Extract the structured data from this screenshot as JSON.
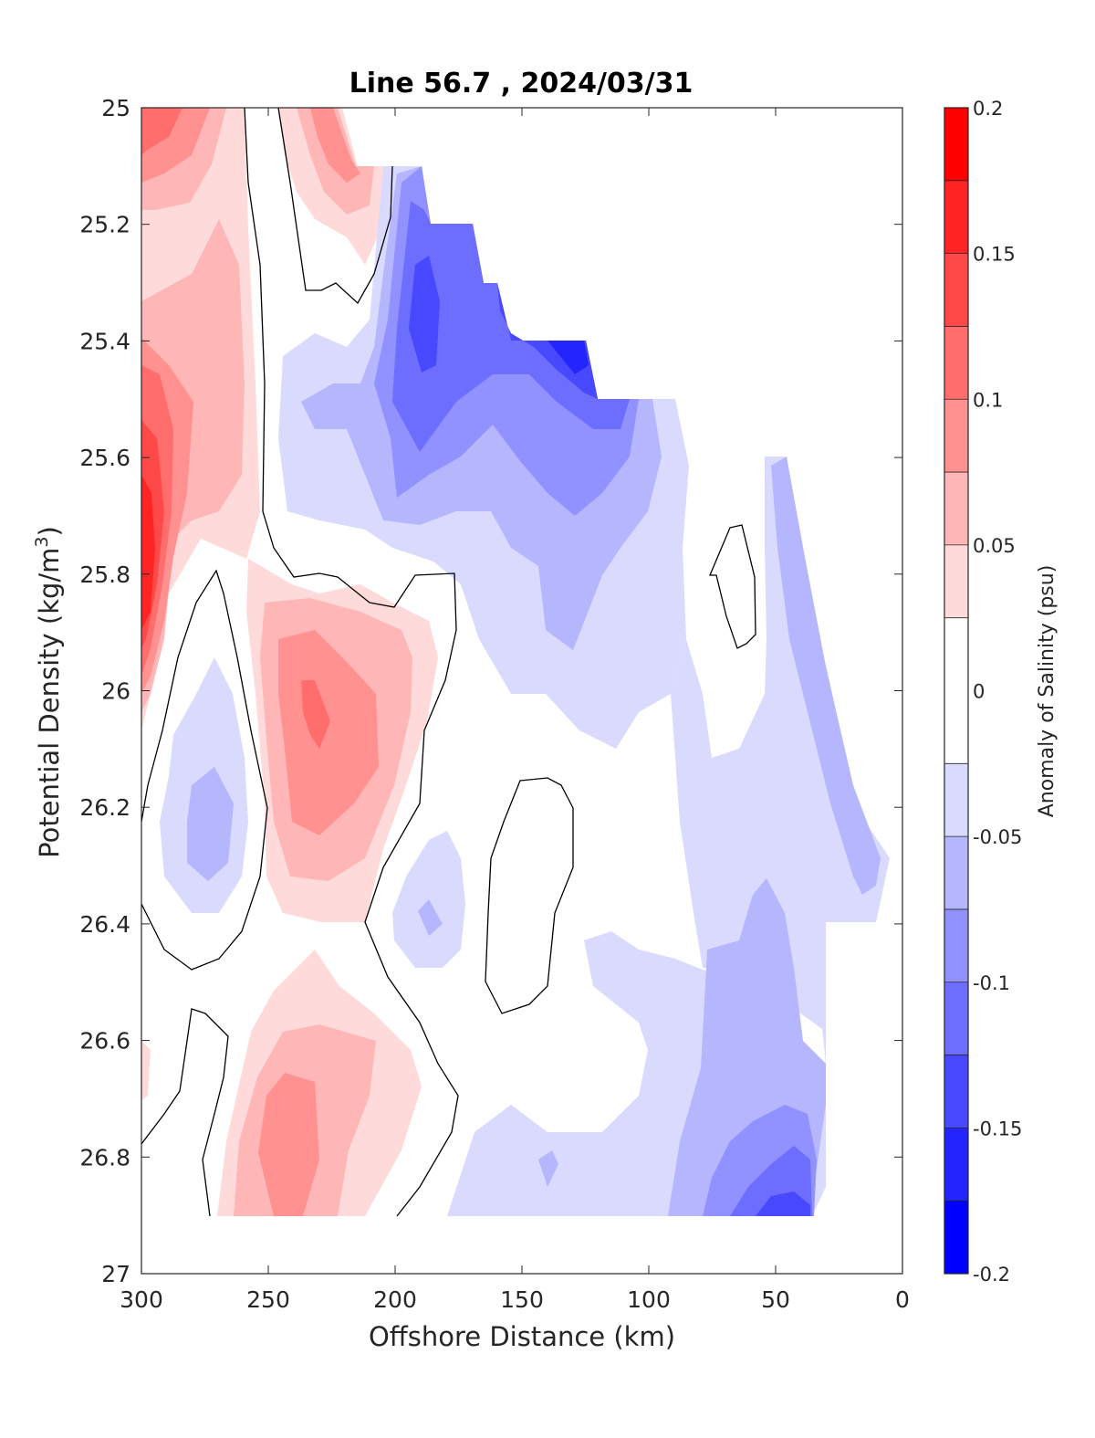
{
  "chart_data": {
    "type": "heatmap",
    "title": "Line 56.7 , 2024/03/31",
    "xlabel": "Offshore Distance (km)",
    "ylabel_main": "Potential Density (kg/m",
    "ylabel_sup": "3",
    "ylabel_tail": ")",
    "xlim": [
      300,
      0
    ],
    "ylim": [
      25,
      27
    ],
    "x_reversed": true,
    "y_reversed": true,
    "xticks": [
      "300",
      "250",
      "200",
      "150",
      "100",
      "50",
      "0"
    ],
    "xtick_values": [
      300,
      250,
      200,
      150,
      100,
      50,
      0
    ],
    "yticks": [
      "25",
      "25.2",
      "25.4",
      "25.6",
      "25.8",
      "26",
      "26.2",
      "26.4",
      "26.6",
      "26.8",
      "27"
    ],
    "ytick_values": [
      25,
      25.2,
      25.4,
      25.6,
      25.8,
      26,
      26.2,
      26.4,
      26.6,
      26.8,
      27
    ],
    "colorbar": {
      "label": "Anomaly of Salinity (psu)",
      "range": [
        -0.2,
        0.2
      ],
      "ticks": [
        "0.2",
        "0.15",
        "0.1",
        "0.05",
        "0",
        "-0.05",
        "-0.1",
        "-0.15",
        "-0.2"
      ],
      "tick_values": [
        0.2,
        0.15,
        0.1,
        0.05,
        0,
        -0.05,
        -0.1,
        -0.15,
        -0.2
      ],
      "levels": [
        -0.2,
        -0.175,
        -0.15,
        -0.125,
        -0.1,
        -0.075,
        -0.05,
        -0.025,
        0.025,
        0.05,
        0.075,
        0.1,
        0.125,
        0.15,
        0.175,
        0.2
      ],
      "colors": [
        "#0000ff",
        "#2424ff",
        "#4848ff",
        "#6d6dff",
        "#9191ff",
        "#b6b6ff",
        "#dadaff",
        "#ffffff",
        "#ffdada",
        "#ffb6b6",
        "#ff9191",
        "#ff6d6d",
        "#ff4848",
        "#ff2424",
        "#ff0000"
      ]
    },
    "features": [
      {
        "name": "positive anomaly core",
        "x": 298,
        "y": 25.72,
        "value": 0.17
      },
      {
        "name": "positive anomaly",
        "x": 230,
        "y": 25.06,
        "value": 0.09
      },
      {
        "name": "positive anomaly",
        "x": 230,
        "y": 26.03,
        "value": 0.11
      },
      {
        "name": "positive anomaly",
        "x": 240,
        "y": 26.75,
        "value": 0.09
      },
      {
        "name": "negative anomaly core",
        "x": 130,
        "y": 25.44,
        "value": -0.16
      },
      {
        "name": "negative anomaly",
        "x": 185,
        "y": 25.33,
        "value": -0.14
      },
      {
        "name": "negative anomaly",
        "x": 272,
        "y": 26.22,
        "value": -0.07
      },
      {
        "name": "negative anomaly",
        "x": 185,
        "y": 26.38,
        "value": -0.07
      },
      {
        "name": "negative anomaly",
        "x": 45,
        "y": 26.88,
        "value": -0.14
      },
      {
        "name": "negative anomaly",
        "x": 145,
        "y": 26.82,
        "value": -0.06
      },
      {
        "name": "negative anomaly",
        "x": 30,
        "y": 26.0,
        "value": -0.07
      }
    ]
  }
}
